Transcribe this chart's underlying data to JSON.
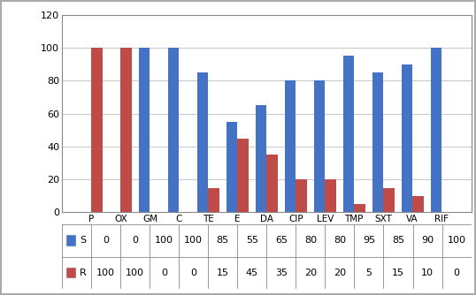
{
  "categories": [
    "P",
    "OX",
    "GM",
    "C",
    "TE",
    "E",
    "DA",
    "CIP",
    "LEV",
    "TMP",
    "SXT",
    "VA",
    "RIF"
  ],
  "S_values": [
    0,
    0,
    100,
    100,
    85,
    55,
    65,
    80,
    80,
    95,
    85,
    90,
    100
  ],
  "R_values": [
    100,
    100,
    0,
    0,
    15,
    45,
    35,
    20,
    20,
    5,
    15,
    10,
    0
  ],
  "S_color": "#4472C4",
  "R_color": "#BE4B48",
  "ylim": [
    0,
    120
  ],
  "yticks": [
    0,
    20,
    40,
    60,
    80,
    100,
    120
  ],
  "bar_width": 0.38,
  "legend_S": "S",
  "legend_R": "R",
  "table_row_S": [
    0,
    0,
    100,
    100,
    85,
    55,
    65,
    80,
    80,
    95,
    85,
    90,
    100
  ],
  "table_row_R": [
    100,
    100,
    0,
    0,
    15,
    45,
    35,
    20,
    20,
    5,
    15,
    10,
    0
  ],
  "grid_color": "#C8C8C8",
  "border_color": "#888888",
  "outer_border": "#AAAAAA"
}
